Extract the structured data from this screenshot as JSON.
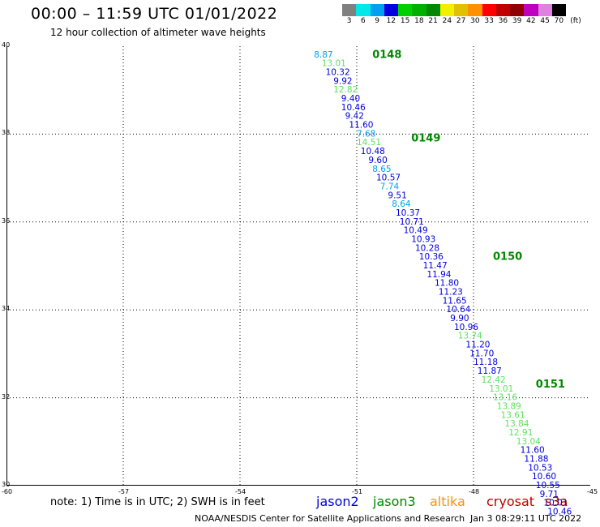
{
  "header": {
    "title": "00:00 – 11:59 UTC 01/01/2022",
    "subtitle": "12 hour collection of altimeter wave heights"
  },
  "legend": {
    "unit": "(ft)",
    "bins": [
      {
        "label": "3",
        "color": "#808080"
      },
      {
        "label": "6",
        "color": "#00e8e8"
      },
      {
        "label": "9",
        "color": "#00a0f0"
      },
      {
        "label": "12",
        "color": "#0000e0"
      },
      {
        "label": "15",
        "color": "#00d000"
      },
      {
        "label": "18",
        "color": "#00b000"
      },
      {
        "label": "21",
        "color": "#008800"
      },
      {
        "label": "24",
        "color": "#f0f000"
      },
      {
        "label": "27",
        "color": "#e0c000"
      },
      {
        "label": "30",
        "color": "#ff9000"
      },
      {
        "label": "33",
        "color": "#ff0000"
      },
      {
        "label": "36",
        "color": "#c00000"
      },
      {
        "label": "39",
        "color": "#900000"
      },
      {
        "label": "42",
        "color": "#c000c0"
      },
      {
        "label": "45",
        "color": "#e080e0"
      },
      {
        "label": "70",
        "color": "#000000"
      }
    ]
  },
  "axes": {
    "lat_labels": [
      "40",
      "38",
      "36",
      "34",
      "32",
      "30"
    ],
    "lon_labels": [
      "-60",
      "-57",
      "-54",
      "-51",
      "-48",
      "-45"
    ]
  },
  "chart_data": {
    "type": "scatter",
    "xlim": [
      -60,
      -45
    ],
    "ylim": [
      30,
      40
    ],
    "x_unit": "longitude (deg)",
    "y_unit": "latitude (deg)",
    "time_marks": [
      {
        "label": "0148",
        "lon": -50.6,
        "lat": 39.8,
        "color": "#008800"
      },
      {
        "label": "0149",
        "lon": -49.6,
        "lat": 37.9,
        "color": "#008800"
      },
      {
        "label": "0150",
        "lon": -47.5,
        "lat": 35.2,
        "color": "#008800"
      },
      {
        "label": "0151",
        "lon": -46.4,
        "lat": 32.3,
        "color": "#008800"
      }
    ],
    "points": [
      {
        "v": "8.87",
        "lon": -52.1,
        "lat": 39.8,
        "c": "#00a0f0"
      },
      {
        "v": "13.01",
        "lon": -51.9,
        "lat": 39.6,
        "c": "#60e060"
      },
      {
        "v": "10.32",
        "lon": -51.8,
        "lat": 39.4,
        "c": "#0000e0"
      },
      {
        "v": "9.92",
        "lon": -51.6,
        "lat": 39.2,
        "c": "#0000e0"
      },
      {
        "v": "12.82",
        "lon": -51.6,
        "lat": 39.0,
        "c": "#60e060"
      },
      {
        "v": "9.40",
        "lon": -51.4,
        "lat": 38.8,
        "c": "#0000e0"
      },
      {
        "v": "10.46",
        "lon": -51.4,
        "lat": 38.6,
        "c": "#0000e0"
      },
      {
        "v": "9.42",
        "lon": -51.3,
        "lat": 38.4,
        "c": "#0000e0"
      },
      {
        "v": "11.60",
        "lon": -51.2,
        "lat": 38.2,
        "c": "#0000e0"
      },
      {
        "v": "7.68",
        "lon": -51.0,
        "lat": 38.0,
        "c": "#00a0f0"
      },
      {
        "v": "14.51",
        "lon": -51.0,
        "lat": 37.8,
        "c": "#60e060"
      },
      {
        "v": "10.48",
        "lon": -50.9,
        "lat": 37.6,
        "c": "#0000e0"
      },
      {
        "v": "9.60",
        "lon": -50.7,
        "lat": 37.4,
        "c": "#0000e0"
      },
      {
        "v": "8.65",
        "lon": -50.6,
        "lat": 37.2,
        "c": "#00a0f0"
      },
      {
        "v": "10.57",
        "lon": -50.5,
        "lat": 37.0,
        "c": "#0000e0"
      },
      {
        "v": "7.74",
        "lon": -50.4,
        "lat": 36.8,
        "c": "#00a0f0"
      },
      {
        "v": "9.51",
        "lon": -50.2,
        "lat": 36.6,
        "c": "#0000e0"
      },
      {
        "v": "8.64",
        "lon": -50.1,
        "lat": 36.4,
        "c": "#00a0f0"
      },
      {
        "v": "10.37",
        "lon": -50.0,
        "lat": 36.2,
        "c": "#0000e0"
      },
      {
        "v": "10.71",
        "lon": -49.9,
        "lat": 36.0,
        "c": "#0000e0"
      },
      {
        "v": "10.49",
        "lon": -49.8,
        "lat": 35.8,
        "c": "#0000e0"
      },
      {
        "v": "10.93",
        "lon": -49.6,
        "lat": 35.6,
        "c": "#0000e0"
      },
      {
        "v": "10.28",
        "lon": -49.5,
        "lat": 35.4,
        "c": "#0000e0"
      },
      {
        "v": "10.36",
        "lon": -49.4,
        "lat": 35.2,
        "c": "#0000e0"
      },
      {
        "v": "11.47",
        "lon": -49.3,
        "lat": 35.0,
        "c": "#0000e0"
      },
      {
        "v": "11.94",
        "lon": -49.2,
        "lat": 34.8,
        "c": "#0000e0"
      },
      {
        "v": "11.80",
        "lon": -49.0,
        "lat": 34.6,
        "c": "#0000e0"
      },
      {
        "v": "11.23",
        "lon": -48.9,
        "lat": 34.4,
        "c": "#0000e0"
      },
      {
        "v": "11.65",
        "lon": -48.8,
        "lat": 34.2,
        "c": "#0000e0"
      },
      {
        "v": "10.64",
        "lon": -48.7,
        "lat": 34.0,
        "c": "#0000e0"
      },
      {
        "v": "9.90",
        "lon": -48.6,
        "lat": 33.8,
        "c": "#0000e0"
      },
      {
        "v": "10.96",
        "lon": -48.5,
        "lat": 33.6,
        "c": "#0000e0"
      },
      {
        "v": "13.74",
        "lon": -48.4,
        "lat": 33.4,
        "c": "#60e060"
      },
      {
        "v": "11.20",
        "lon": -48.2,
        "lat": 33.2,
        "c": "#0000e0"
      },
      {
        "v": "11.70",
        "lon": -48.1,
        "lat": 33.0,
        "c": "#0000e0"
      },
      {
        "v": "11.18",
        "lon": -48.0,
        "lat": 32.8,
        "c": "#0000e0"
      },
      {
        "v": "11.87",
        "lon": -47.9,
        "lat": 32.6,
        "c": "#0000e0"
      },
      {
        "v": "12.42",
        "lon": -47.8,
        "lat": 32.4,
        "c": "#60e060"
      },
      {
        "v": "13.01",
        "lon": -47.6,
        "lat": 32.2,
        "c": "#60e060"
      },
      {
        "v": "13.16",
        "lon": -47.5,
        "lat": 32.0,
        "c": "#60e060"
      },
      {
        "v": "13.89",
        "lon": -47.4,
        "lat": 31.8,
        "c": "#60e060"
      },
      {
        "v": "13.61",
        "lon": -47.3,
        "lat": 31.6,
        "c": "#60e060"
      },
      {
        "v": "13.84",
        "lon": -47.2,
        "lat": 31.4,
        "c": "#60e060"
      },
      {
        "v": "12.91",
        "lon": -47.1,
        "lat": 31.2,
        "c": "#60e060"
      },
      {
        "v": "13.04",
        "lon": -46.9,
        "lat": 31.0,
        "c": "#60e060"
      },
      {
        "v": "11.60",
        "lon": -46.8,
        "lat": 30.8,
        "c": "#0000e0"
      },
      {
        "v": "11.88",
        "lon": -46.7,
        "lat": 30.6,
        "c": "#0000e0"
      },
      {
        "v": "10.53",
        "lon": -46.6,
        "lat": 30.4,
        "c": "#0000e0"
      },
      {
        "v": "10.60",
        "lon": -46.5,
        "lat": 30.2,
        "c": "#0000e0"
      },
      {
        "v": "10.55",
        "lon": -46.4,
        "lat": 30.0,
        "c": "#0000e0"
      },
      {
        "v": "9.71",
        "lon": -46.3,
        "lat": 29.8,
        "c": "#0000e0"
      },
      {
        "v": "10.01",
        "lon": -46.2,
        "lat": 29.6,
        "c": "#0000e0"
      },
      {
        "v": "10.46",
        "lon": -46.1,
        "lat": 29.4,
        "c": "#0000e0"
      }
    ]
  },
  "footer": {
    "note": "note: 1) Time is in UTC; 2) SWH is in feet",
    "satellites": [
      {
        "name": "jason2",
        "color": "#0000e0"
      },
      {
        "name": "jason3",
        "color": "#008800"
      },
      {
        "name": "altika",
        "color": "#ff9000"
      },
      {
        "name": "cryosat",
        "color": "#c00000"
      },
      {
        "name": "s3a",
        "color": "#900000"
      }
    ],
    "credit": "NOAA/NESDIS Center for Satellite Applications and Research",
    "timestamp": "Jan  3 08:29:11 UTC 2022"
  }
}
